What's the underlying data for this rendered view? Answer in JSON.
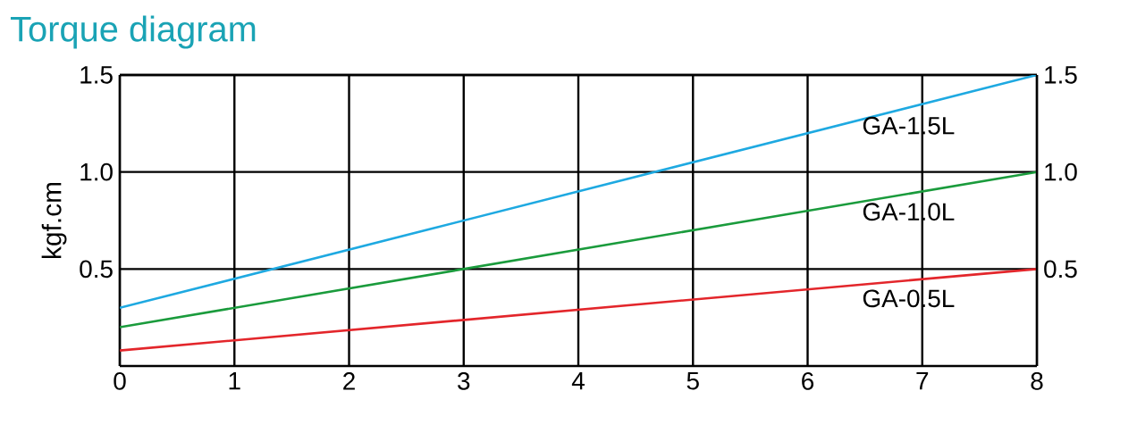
{
  "chart_data": {
    "type": "line",
    "title": "Torque diagram",
    "ylabel": "kgf.cm",
    "x": [
      0,
      8
    ],
    "series": [
      {
        "name": "GA-1.5L",
        "color": "#1ea9e1",
        "values": [
          0.3,
          1.5
        ]
      },
      {
        "name": "GA-1.0L",
        "color": "#1a9b3c",
        "values": [
          0.2,
          1.0
        ]
      },
      {
        "name": "GA-0.5L",
        "color": "#e3262b",
        "values": [
          0.08,
          0.5
        ]
      }
    ],
    "xlim": [
      0,
      8
    ],
    "xticks": [
      0,
      1,
      2,
      3,
      4,
      5,
      6,
      7,
      8
    ],
    "ylim": [
      0,
      1.5
    ],
    "yticks": [
      0.5,
      {
        "value": 1,
        "label": "1.0"
      },
      1.5
    ],
    "y2lim": [
      0,
      1.5
    ],
    "y2ticks": [
      0.5,
      {
        "value": 1,
        "label": "1.0"
      },
      1.5
    ],
    "grid": true,
    "marker": "none",
    "line_style": "solid"
  }
}
